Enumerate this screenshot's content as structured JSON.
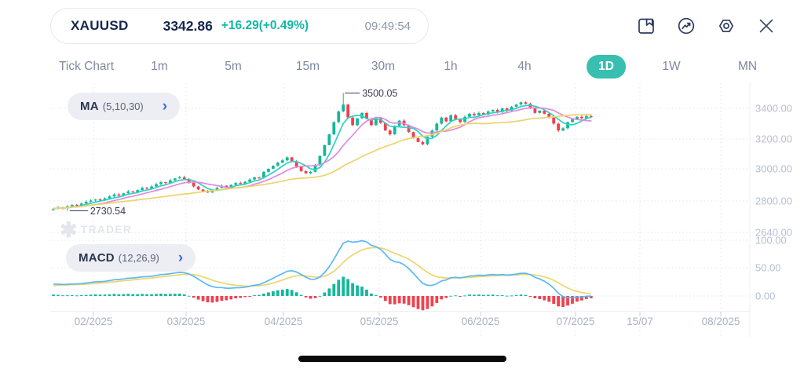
{
  "quote": {
    "symbol": "XAUUSD",
    "price": "3342.86",
    "change": "+16.29(+0.49%)",
    "time": "09:49:54"
  },
  "toolbar": {
    "icons": [
      "save-chart",
      "indicators",
      "settings",
      "close"
    ]
  },
  "tabs": {
    "items": [
      {
        "label": "Tick Chart",
        "selected": false
      },
      {
        "label": "1m",
        "selected": false
      },
      {
        "label": "5m",
        "selected": false
      },
      {
        "label": "15m",
        "selected": false
      },
      {
        "label": "30m",
        "selected": false
      },
      {
        "label": "1h",
        "selected": false
      },
      {
        "label": "4h",
        "selected": false
      },
      {
        "label": "1D",
        "selected": true
      },
      {
        "label": "1W",
        "selected": false
      },
      {
        "label": "MN",
        "selected": false
      }
    ]
  },
  "indicators": {
    "ma": {
      "name": "MA",
      "params": "(5,10,30)",
      "chevron": "›"
    },
    "macd": {
      "name": "MACD",
      "params": "(12,26,9)",
      "chevron": "›"
    }
  },
  "watermark": {
    "text": "TRADER"
  },
  "colors": {
    "accent_teal": "#38bfb0",
    "up": "#15b79b",
    "down": "#f2404e",
    "change_text": "#10b9a4",
    "ma5": "#2ed3be",
    "ma10": "#e18ae0",
    "ma30": "#edd36b",
    "macd_line": "#5cb8f5",
    "macd_signal": "#ecd66e",
    "axis_label": "#b6bed0",
    "date_label": "#a9b2c4",
    "grid": "#e0e4ee",
    "annotation": "#353d54",
    "watermark": "#e3e6ec"
  },
  "chart_data": [
    {
      "type": "candlestick",
      "symbol": "XAUUSD",
      "timeframe": "1D",
      "x_tick_labels": [
        "02/2025",
        "03/2025",
        "04/2025",
        "05/2025",
        "06/2025",
        "07/2025",
        "15/07",
        "08/2025"
      ],
      "y_tick_labels": [
        "3400.00",
        "3200.00",
        "3000.00",
        "2800.00",
        "2640.00"
      ],
      "y_tick_values": [
        3400,
        3200,
        3000,
        2800,
        2640
      ],
      "ylim": [
        2570,
        3554
      ],
      "closes": [
        2745,
        2752,
        2748,
        2760,
        2770,
        2765,
        2778,
        2790,
        2798,
        2805,
        2798,
        2812,
        2825,
        2838,
        2830,
        2845,
        2858,
        2852,
        2866,
        2880,
        2875,
        2890,
        2905,
        2918,
        2912,
        2930,
        2942,
        2950,
        2938,
        2915,
        2890,
        2870,
        2858,
        2850,
        2862,
        2880,
        2895,
        2885,
        2900,
        2912,
        2908,
        2920,
        2935,
        2950,
        2945,
        2985,
        3005,
        3025,
        3045,
        3060,
        3080,
        3055,
        3020,
        2990,
        2975,
        2985,
        3030,
        3090,
        3160,
        3230,
        3310,
        3380,
        3425,
        3340,
        3290,
        3335,
        3370,
        3330,
        3290,
        3335,
        3305,
        3255,
        3230,
        3285,
        3320,
        3290,
        3245,
        3205,
        3180,
        3165,
        3215,
        3255,
        3300,
        3340,
        3315,
        3355,
        3330,
        3310,
        3345,
        3365,
        3355,
        3370,
        3360,
        3380,
        3390,
        3375,
        3400,
        3385,
        3410,
        3425,
        3440,
        3430,
        3400,
        3370,
        3385,
        3365,
        3340,
        3300,
        3255,
        3270,
        3310,
        3330,
        3345,
        3335,
        3350,
        3342.86
      ],
      "annotations": {
        "high_label": "3500.05",
        "high_value": 3500.05,
        "low_label": "2730.54",
        "low_value": 2730.54
      },
      "overlays": [
        "MA5",
        "MA10",
        "MA30"
      ]
    },
    {
      "type": "macd",
      "params": [
        12,
        26,
        9
      ],
      "y_tick_labels": [
        "100.00",
        "50.00",
        "0.00"
      ],
      "y_tick_values": [
        100,
        50,
        0
      ],
      "series": [
        "macd",
        "signal",
        "histogram"
      ]
    }
  ]
}
